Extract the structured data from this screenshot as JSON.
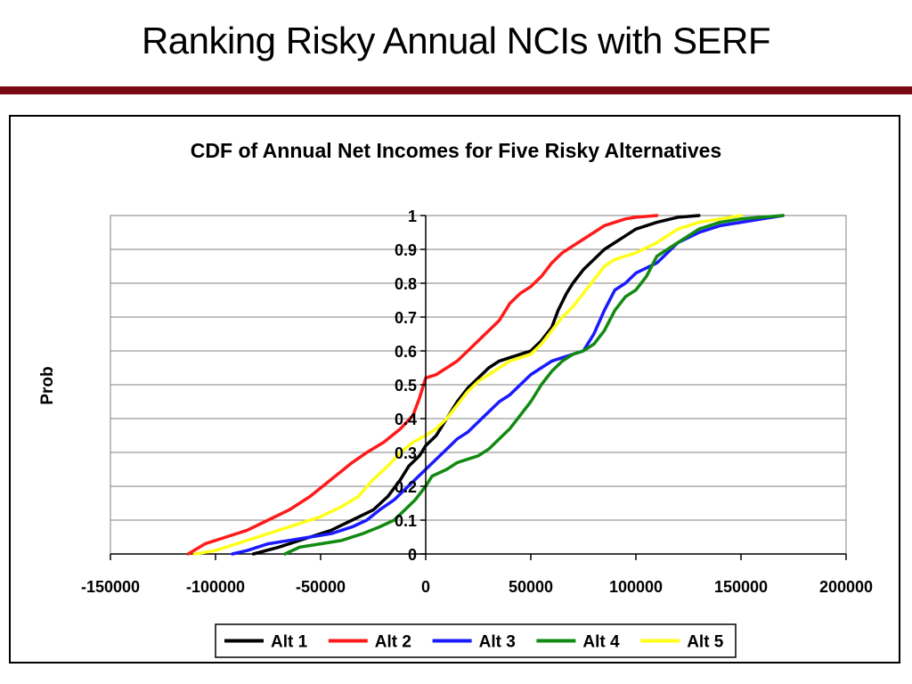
{
  "slide": {
    "title": "Ranking Risky Annual NCIs with SERF"
  },
  "colors": {
    "title_rule": "#7a0a12",
    "Alt 1": "#000000",
    "Alt 2": "#ff1a1a",
    "Alt 3": "#1a1aff",
    "Alt 4": "#128a12",
    "Alt 5": "#ffff1a"
  },
  "chart_data": {
    "type": "line",
    "title": "CDF of Annual Net Incomes for Five Risky Alternatives",
    "xlabel": "",
    "ylabel": "Prob",
    "xlim": [
      -150000,
      200000
    ],
    "ylim": [
      0,
      1
    ],
    "x_ticks": [
      "-150000",
      "-100000",
      "-50000",
      "0",
      "50000",
      "100000",
      "150000",
      "200000"
    ],
    "x_tick_values": [
      -150000,
      -100000,
      -50000,
      0,
      50000,
      100000,
      150000,
      200000
    ],
    "y_ticks": [
      "0",
      "0.1",
      "0.2",
      "0.3",
      "0.4",
      "0.5",
      "0.6",
      "0.7",
      "0.8",
      "0.9",
      "1"
    ],
    "y_tick_values": [
      0,
      0.1,
      0.2,
      0.3,
      0.4,
      0.5,
      0.6,
      0.7,
      0.8,
      0.9,
      1
    ],
    "grid": "horizontal",
    "legend": "bottom",
    "series": [
      {
        "name": "Alt 1",
        "x": [
          -82000,
          -70000,
          -55000,
          -45000,
          -35000,
          -25000,
          -18000,
          -12000,
          -8000,
          -3000,
          0,
          5000,
          10000,
          15000,
          20000,
          25000,
          30000,
          35000,
          40000,
          45000,
          50000,
          55000,
          60000,
          63000,
          67000,
          70000,
          75000,
          80000,
          85000,
          90000,
          95000,
          100000,
          110000,
          120000,
          130000
        ],
        "y": [
          0,
          0.02,
          0.05,
          0.07,
          0.1,
          0.13,
          0.17,
          0.22,
          0.26,
          0.29,
          0.32,
          0.35,
          0.4,
          0.45,
          0.49,
          0.52,
          0.55,
          0.57,
          0.58,
          0.59,
          0.6,
          0.63,
          0.67,
          0.72,
          0.77,
          0.8,
          0.84,
          0.87,
          0.9,
          0.92,
          0.94,
          0.96,
          0.98,
          0.995,
          1
        ]
      },
      {
        "name": "Alt 2",
        "x": [
          -113000,
          -105000,
          -95000,
          -85000,
          -75000,
          -65000,
          -55000,
          -45000,
          -35000,
          -28000,
          -20000,
          -12000,
          -6000,
          -3000,
          0,
          5000,
          10000,
          15000,
          20000,
          25000,
          30000,
          35000,
          40000,
          45000,
          50000,
          55000,
          60000,
          65000,
          70000,
          75000,
          80000,
          85000,
          90000,
          95000,
          100000,
          110000
        ],
        "y": [
          0,
          0.03,
          0.05,
          0.07,
          0.1,
          0.13,
          0.17,
          0.22,
          0.27,
          0.3,
          0.33,
          0.37,
          0.41,
          0.46,
          0.52,
          0.53,
          0.55,
          0.57,
          0.6,
          0.63,
          0.66,
          0.69,
          0.74,
          0.77,
          0.79,
          0.82,
          0.86,
          0.89,
          0.91,
          0.93,
          0.95,
          0.97,
          0.98,
          0.99,
          0.995,
          1
        ]
      },
      {
        "name": "Alt 3",
        "x": [
          -92000,
          -85000,
          -75000,
          -65000,
          -55000,
          -45000,
          -35000,
          -28000,
          -22000,
          -15000,
          -10000,
          -5000,
          0,
          5000,
          10000,
          15000,
          20000,
          25000,
          30000,
          35000,
          40000,
          45000,
          50000,
          55000,
          60000,
          65000,
          70000,
          75000,
          80000,
          85000,
          90000,
          95000,
          100000,
          110000,
          120000,
          130000,
          140000,
          150000,
          160000,
          170000
        ],
        "y": [
          0,
          0.01,
          0.03,
          0.04,
          0.05,
          0.06,
          0.08,
          0.1,
          0.13,
          0.16,
          0.19,
          0.22,
          0.25,
          0.28,
          0.31,
          0.34,
          0.36,
          0.39,
          0.42,
          0.45,
          0.47,
          0.5,
          0.53,
          0.55,
          0.57,
          0.58,
          0.59,
          0.6,
          0.65,
          0.72,
          0.78,
          0.8,
          0.83,
          0.86,
          0.92,
          0.95,
          0.97,
          0.98,
          0.99,
          1
        ]
      },
      {
        "name": "Alt 4",
        "x": [
          -67000,
          -60000,
          -50000,
          -40000,
          -30000,
          -22000,
          -15000,
          -10000,
          -5000,
          0,
          3000,
          10000,
          15000,
          20000,
          25000,
          30000,
          35000,
          40000,
          45000,
          50000,
          55000,
          60000,
          65000,
          70000,
          75000,
          80000,
          85000,
          90000,
          95000,
          100000,
          105000,
          110000,
          120000,
          130000,
          140000,
          150000,
          160000,
          170000
        ],
        "y": [
          0,
          0.02,
          0.03,
          0.04,
          0.06,
          0.08,
          0.1,
          0.13,
          0.16,
          0.2,
          0.23,
          0.25,
          0.27,
          0.28,
          0.29,
          0.31,
          0.34,
          0.37,
          0.41,
          0.45,
          0.5,
          0.54,
          0.57,
          0.59,
          0.6,
          0.62,
          0.66,
          0.72,
          0.76,
          0.78,
          0.82,
          0.88,
          0.92,
          0.96,
          0.98,
          0.99,
          0.995,
          1
        ]
      },
      {
        "name": "Alt 5",
        "x": [
          -110000,
          -100000,
          -90000,
          -80000,
          -70000,
          -60000,
          -50000,
          -40000,
          -32000,
          -25000,
          -18000,
          -12000,
          -6000,
          0,
          5000,
          10000,
          15000,
          20000,
          25000,
          30000,
          35000,
          40000,
          45000,
          50000,
          55000,
          60000,
          65000,
          70000,
          75000,
          80000,
          85000,
          90000,
          95000,
          100000,
          110000,
          120000,
          130000,
          140000,
          150000
        ],
        "y": [
          0,
          0.01,
          0.03,
          0.05,
          0.07,
          0.09,
          0.11,
          0.14,
          0.17,
          0.22,
          0.26,
          0.3,
          0.33,
          0.35,
          0.37,
          0.4,
          0.44,
          0.48,
          0.51,
          0.53,
          0.55,
          0.57,
          0.58,
          0.59,
          0.62,
          0.66,
          0.7,
          0.73,
          0.77,
          0.81,
          0.85,
          0.87,
          0.88,
          0.89,
          0.92,
          0.96,
          0.98,
          0.99,
          1
        ]
      }
    ]
  }
}
